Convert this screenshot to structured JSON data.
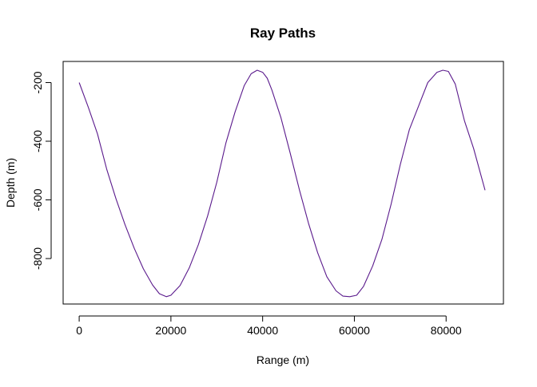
{
  "chart_data": {
    "type": "line",
    "title": "Ray Paths",
    "xlabel": "Range (m)",
    "ylabel": "Depth (m)",
    "xlim": [
      -3500,
      92500
    ],
    "ylim": [
      -955,
      -128
    ],
    "x_ticks": [
      0,
      20000,
      40000,
      60000,
      80000
    ],
    "x_tick_labels": [
      "0",
      "20000",
      "40000",
      "60000",
      "80000"
    ],
    "y_ticks": [
      -200,
      -400,
      -600,
      -800
    ],
    "y_tick_labels": [
      "-200",
      "-400",
      "-600",
      "-800"
    ],
    "grid": false,
    "legend": "none",
    "series": [
      {
        "color": "#5a1a8c",
        "x": [
          0,
          2000,
          4000,
          6000,
          8000,
          10000,
          12000,
          14000,
          16000,
          17500,
          19000,
          20000,
          22000,
          24000,
          26000,
          28000,
          30000,
          32000,
          34000,
          36000,
          37500,
          38800,
          40000,
          41000,
          42000,
          44000,
          46000,
          48000,
          50000,
          52000,
          54000,
          56000,
          57500,
          59000,
          60500,
          62000,
          64000,
          66000,
          68000,
          70000,
          72000,
          74000,
          76000,
          78000,
          79300,
          80500,
          82000,
          84000,
          86000,
          88500
        ],
        "y": [
          -200,
          -285,
          -375,
          -495,
          -595,
          -685,
          -765,
          -835,
          -890,
          -920,
          -930,
          -925,
          -892,
          -832,
          -752,
          -655,
          -540,
          -405,
          -300,
          -210,
          -170,
          -158,
          -165,
          -185,
          -225,
          -320,
          -440,
          -565,
          -680,
          -780,
          -862,
          -910,
          -928,
          -930,
          -925,
          -895,
          -825,
          -735,
          -615,
          -480,
          -360,
          -280,
          -200,
          -165,
          -158,
          -162,
          -205,
          -330,
          -425,
          -567
        ]
      }
    ]
  }
}
